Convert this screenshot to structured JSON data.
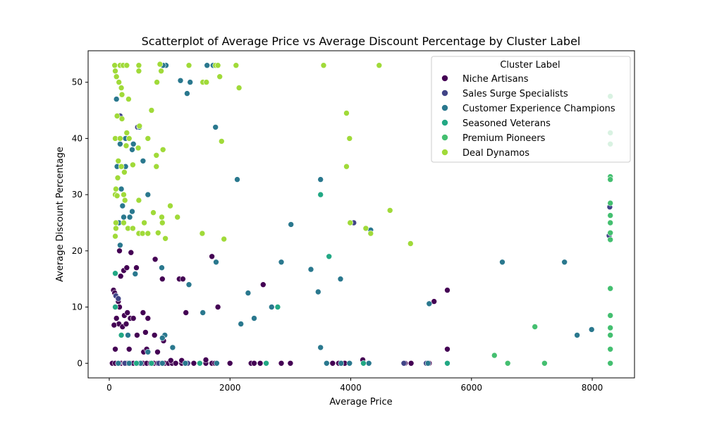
{
  "chart_data": {
    "type": "scatter",
    "title": "Scatterplot of Average Price vs Average Discount Percentage by Cluster Label",
    "xlabel": "Average Price",
    "ylabel": "Average Discount Percentage",
    "xlim": [
      -350,
      8700
    ],
    "ylim": [
      -2.6,
      55.6
    ],
    "xticks": [
      0,
      2000,
      4000,
      6000,
      8000
    ],
    "yticks": [
      0,
      10,
      20,
      30,
      40,
      50
    ],
    "grid": false,
    "legend": {
      "title": "Cluster Label",
      "placement": "top-right"
    },
    "series": [
      {
        "name": "Niche Artisans",
        "color": "#440154",
        "points": [
          [
            50,
            0
          ],
          [
            100,
            0
          ],
          [
            150,
            0
          ],
          [
            200,
            0
          ],
          [
            250,
            0
          ],
          [
            300,
            0
          ],
          [
            350,
            0
          ],
          [
            400,
            0
          ],
          [
            450,
            0
          ],
          [
            500,
            0
          ],
          [
            560,
            0
          ],
          [
            620,
            0
          ],
          [
            680,
            0
          ],
          [
            740,
            0
          ],
          [
            800,
            0
          ],
          [
            860,
            0
          ],
          [
            920,
            0
          ],
          [
            980,
            0
          ],
          [
            1040,
            0
          ],
          [
            1100,
            0
          ],
          [
            1200,
            0
          ],
          [
            1300,
            0
          ],
          [
            1400,
            0
          ],
          [
            1600,
            0
          ],
          [
            1700,
            0
          ],
          [
            1750,
            0
          ],
          [
            2000,
            0
          ],
          [
            2350,
            0
          ],
          [
            2400,
            0
          ],
          [
            2500,
            0
          ],
          [
            2850,
            0
          ],
          [
            3000,
            0
          ],
          [
            3700,
            0
          ],
          [
            3800,
            0
          ],
          [
            3900,
            0
          ],
          [
            4300,
            0
          ],
          [
            4900,
            0
          ],
          [
            5000,
            0
          ],
          [
            5300,
            0
          ],
          [
            70,
            13
          ],
          [
            90,
            12.5
          ],
          [
            110,
            12
          ],
          [
            150,
            11
          ],
          [
            170,
            10
          ],
          [
            120,
            8
          ],
          [
            160,
            7
          ],
          [
            220,
            6.5
          ],
          [
            280,
            7
          ],
          [
            200,
            5
          ],
          [
            80,
            6.8
          ],
          [
            100,
            2.5
          ],
          [
            250,
            8.5
          ],
          [
            300,
            9
          ],
          [
            350,
            8
          ],
          [
            400,
            8
          ],
          [
            460,
            5
          ],
          [
            560,
            9
          ],
          [
            640,
            8
          ],
          [
            600,
            5.5
          ],
          [
            750,
            5
          ],
          [
            800,
            2
          ],
          [
            900,
            4
          ],
          [
            1020,
            0.5
          ],
          [
            1200,
            0.5
          ],
          [
            1600,
            0.6
          ],
          [
            4200,
            0.6
          ],
          [
            170,
            20
          ],
          [
            240,
            16.5
          ],
          [
            190,
            15.5
          ],
          [
            290,
            17
          ],
          [
            360,
            19.7
          ],
          [
            450,
            17
          ],
          [
            760,
            18.5
          ],
          [
            1160,
            15
          ],
          [
            1220,
            15
          ],
          [
            1270,
            9
          ],
          [
            1700,
            19
          ],
          [
            1800,
            10
          ],
          [
            2550,
            14
          ],
          [
            5380,
            11
          ],
          [
            5600,
            13
          ],
          [
            5600,
            2.5
          ],
          [
            880,
            15
          ],
          [
            330,
            2.5
          ],
          [
            570,
            2
          ],
          [
            620,
            2.5
          ]
        ]
      },
      {
        "name": "Sales Surge Specialists",
        "color": "#414487",
        "points": [
          [
            110,
            12
          ],
          [
            150,
            11.5
          ],
          [
            180,
            44
          ],
          [
            470,
            42
          ],
          [
            4050,
            25
          ],
          [
            8280,
            22.7
          ],
          [
            8290,
            27.8
          ],
          [
            5250,
            0
          ],
          [
            4880,
            0
          ],
          [
            1300,
            0
          ],
          [
            260,
            0
          ],
          [
            820,
            0
          ]
        ]
      },
      {
        "name": "Customer Experience Champions",
        "color": "#2a788e",
        "points": [
          [
            940,
            53
          ],
          [
            890,
            53
          ],
          [
            1720,
            53
          ],
          [
            1620,
            53
          ],
          [
            1180,
            50.3
          ],
          [
            1340,
            50
          ],
          [
            1290,
            48
          ],
          [
            120,
            47
          ],
          [
            1760,
            42
          ],
          [
            500,
            42
          ],
          [
            180,
            39
          ],
          [
            400,
            39
          ],
          [
            380,
            38
          ],
          [
            270,
            35
          ],
          [
            130,
            35
          ],
          [
            270,
            40
          ],
          [
            560,
            36
          ],
          [
            2120,
            32.7
          ],
          [
            3500,
            32.7
          ],
          [
            640,
            30
          ],
          [
            200,
            31
          ],
          [
            220,
            28
          ],
          [
            380,
            27
          ],
          [
            240,
            26
          ],
          [
            340,
            26
          ],
          [
            160,
            25
          ],
          [
            3010,
            24.7
          ],
          [
            4330,
            23.7
          ],
          [
            180,
            21
          ],
          [
            3640,
            19
          ],
          [
            2850,
            18
          ],
          [
            3340,
            16.7
          ],
          [
            1770,
            18
          ],
          [
            6510,
            18
          ],
          [
            7540,
            18
          ],
          [
            3830,
            15
          ],
          [
            870,
            17
          ],
          [
            430,
            15.9
          ],
          [
            1320,
            14
          ],
          [
            2300,
            12.5
          ],
          [
            3460,
            12.7
          ],
          [
            5300,
            10.6
          ],
          [
            2690,
            10
          ],
          [
            1550,
            9
          ],
          [
            2400,
            8
          ],
          [
            2180,
            7
          ],
          [
            310,
            5
          ],
          [
            920,
            5
          ],
          [
            880,
            4.5
          ],
          [
            3500,
            2.8
          ],
          [
            1050,
            2.8
          ],
          [
            640,
            2
          ],
          [
            7750,
            5
          ],
          [
            7990,
            6
          ],
          [
            150,
            0
          ],
          [
            330,
            0
          ],
          [
            520,
            0
          ],
          [
            880,
            0
          ],
          [
            1260,
            0
          ],
          [
            1780,
            0
          ],
          [
            2600,
            0
          ],
          [
            3600,
            0
          ],
          [
            3840,
            0
          ],
          [
            3980,
            0
          ],
          [
            4300,
            0
          ],
          [
            5280,
            0
          ]
        ]
      },
      {
        "name": "Seasoned Veterans",
        "color": "#22a884",
        "points": [
          [
            100,
            16
          ],
          [
            100,
            10
          ],
          [
            200,
            5
          ],
          [
            450,
            0
          ],
          [
            700,
            0
          ],
          [
            1500,
            0
          ],
          [
            2600,
            0
          ],
          [
            3500,
            30
          ],
          [
            3640,
            19
          ],
          [
            2790,
            10
          ],
          [
            4210,
            0
          ],
          [
            5600,
            0
          ],
          [
            8300,
            0
          ]
        ]
      },
      {
        "name": "Premium Pioneers",
        "color": "#44bf70",
        "points": [
          [
            8300,
            47.5
          ],
          [
            8300,
            41
          ],
          [
            8300,
            39
          ],
          [
            8300,
            33.2
          ],
          [
            8300,
            32.7
          ],
          [
            8300,
            28.5
          ],
          [
            8300,
            26.3
          ],
          [
            8300,
            25
          ],
          [
            8300,
            23.2
          ],
          [
            8300,
            22
          ],
          [
            8300,
            13.3
          ],
          [
            8300,
            8.5
          ],
          [
            8300,
            6.3
          ],
          [
            8300,
            5
          ],
          [
            8300,
            2.5
          ],
          [
            8300,
            0
          ],
          [
            7050,
            6.5
          ],
          [
            6380,
            1.4
          ],
          [
            6600,
            0
          ],
          [
            7210,
            0
          ]
        ]
      },
      {
        "name": "Deal Dynamos",
        "color": "#a0da39",
        "points": [
          [
            90,
            53
          ],
          [
            180,
            53
          ],
          [
            230,
            53
          ],
          [
            290,
            53
          ],
          [
            490,
            53
          ],
          [
            840,
            53.2
          ],
          [
            1320,
            53
          ],
          [
            1760,
            53
          ],
          [
            1800,
            53
          ],
          [
            2100,
            53
          ],
          [
            3550,
            53
          ],
          [
            4470,
            53
          ],
          [
            100,
            52
          ],
          [
            490,
            52
          ],
          [
            860,
            52
          ],
          [
            120,
            51
          ],
          [
            1830,
            51
          ],
          [
            160,
            50
          ],
          [
            790,
            50
          ],
          [
            1550,
            50
          ],
          [
            1610,
            50
          ],
          [
            200,
            49
          ],
          [
            2150,
            49
          ],
          [
            210,
            47.8
          ],
          [
            320,
            47
          ],
          [
            700,
            45
          ],
          [
            130,
            44
          ],
          [
            210,
            43.5
          ],
          [
            3930,
            44.5
          ],
          [
            500,
            42.2
          ],
          [
            290,
            41
          ],
          [
            100,
            40
          ],
          [
            180,
            40
          ],
          [
            330,
            40
          ],
          [
            640,
            40
          ],
          [
            3980,
            40
          ],
          [
            280,
            38.7
          ],
          [
            480,
            38.3
          ],
          [
            890,
            38
          ],
          [
            1860,
            39.5
          ],
          [
            780,
            37
          ],
          [
            150,
            36
          ],
          [
            200,
            35
          ],
          [
            390,
            35.3
          ],
          [
            780,
            35
          ],
          [
            3930,
            35
          ],
          [
            250,
            34
          ],
          [
            140,
            33
          ],
          [
            240,
            30
          ],
          [
            100,
            30
          ],
          [
            110,
            31
          ],
          [
            130,
            29.8
          ],
          [
            260,
            29
          ],
          [
            490,
            29
          ],
          [
            1010,
            28
          ],
          [
            4650,
            27.2
          ],
          [
            730,
            26.8
          ],
          [
            1130,
            26
          ],
          [
            870,
            26
          ],
          [
            110,
            25
          ],
          [
            240,
            25
          ],
          [
            580,
            25
          ],
          [
            880,
            25
          ],
          [
            3990,
            25
          ],
          [
            310,
            24
          ],
          [
            110,
            24
          ],
          [
            390,
            24
          ],
          [
            4250,
            24
          ],
          [
            490,
            23.1
          ],
          [
            550,
            23.1
          ],
          [
            640,
            23.1
          ],
          [
            810,
            23.2
          ],
          [
            1540,
            23.1
          ],
          [
            4330,
            23.1
          ],
          [
            100,
            22.6
          ],
          [
            930,
            22.2
          ],
          [
            1900,
            22.1
          ],
          [
            4990,
            21.3
          ]
        ]
      }
    ]
  }
}
